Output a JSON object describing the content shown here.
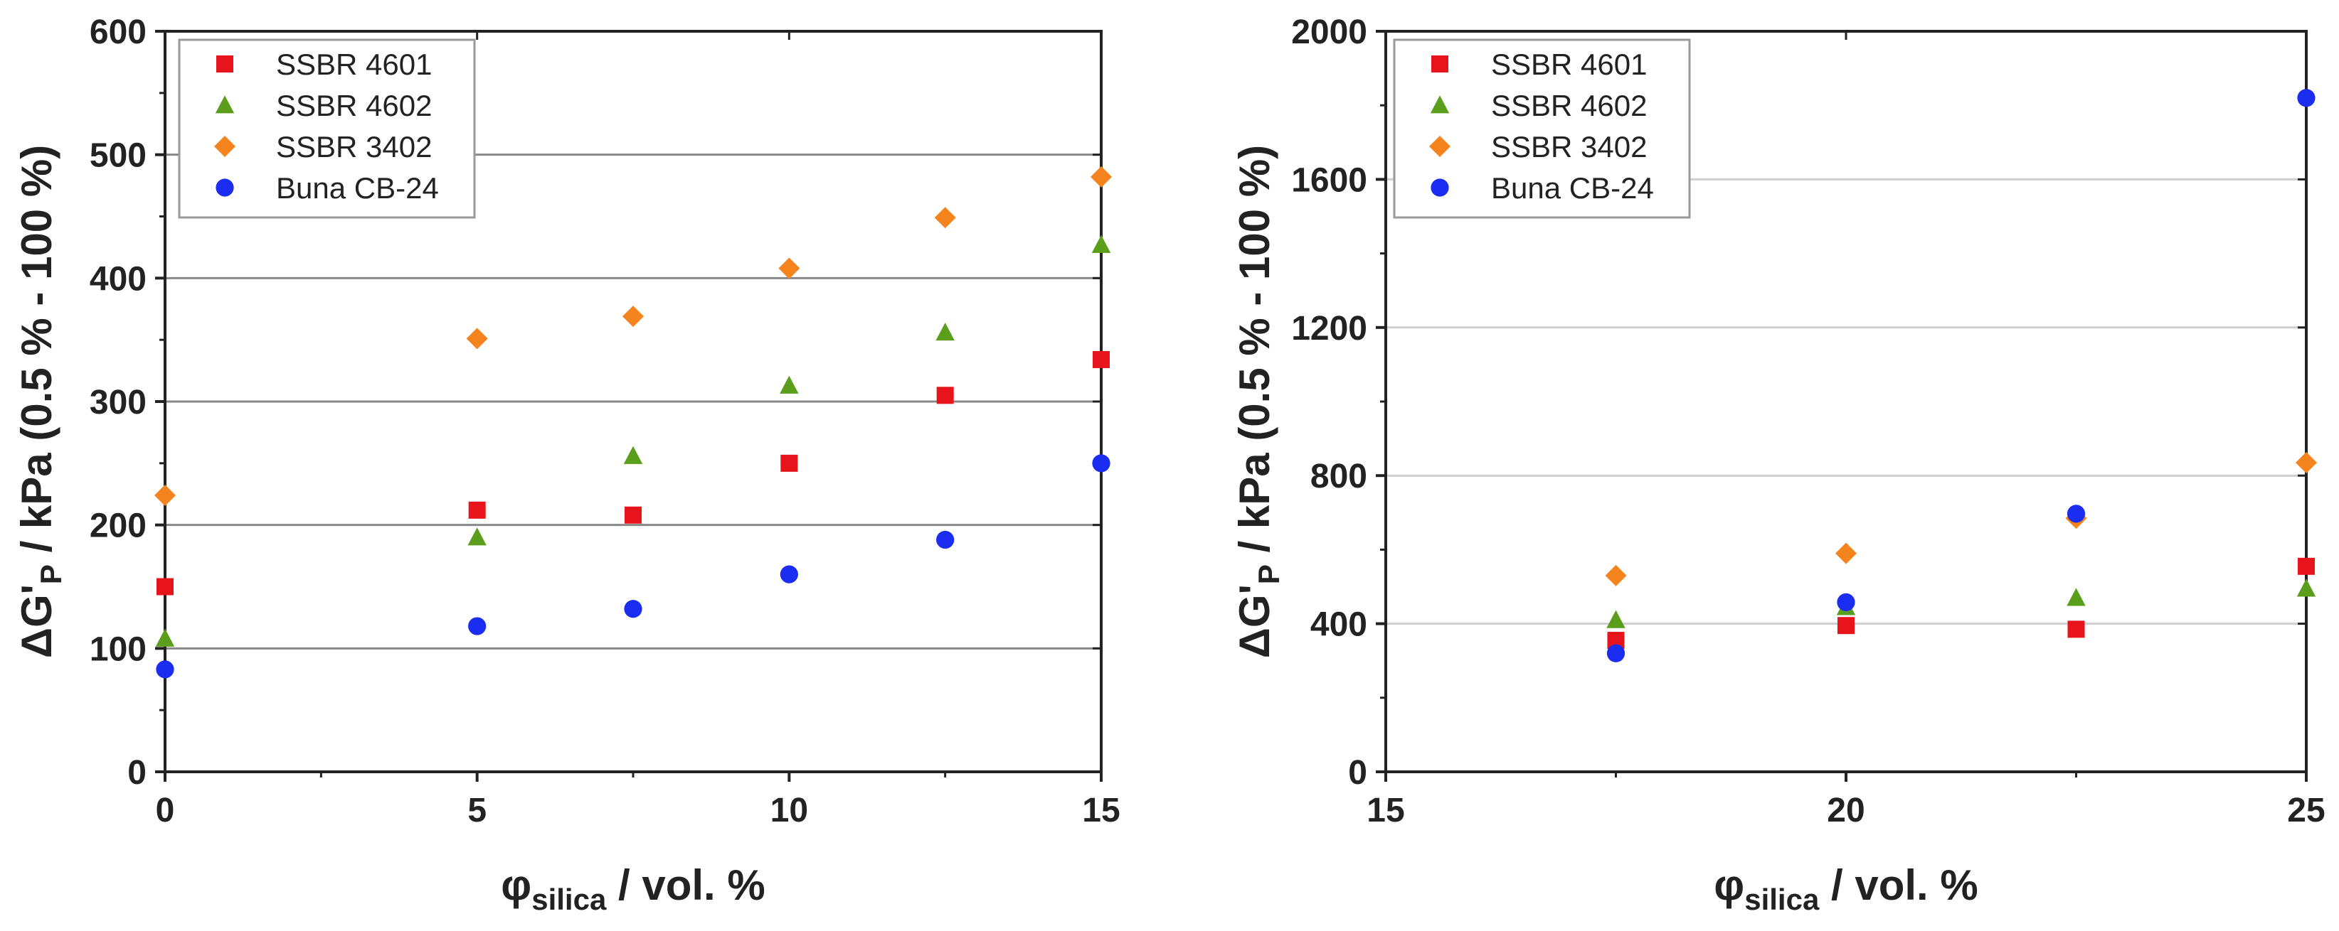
{
  "chart_data": [
    {
      "type": "scatter",
      "title": "",
      "xlabel": {
        "symbol": "φ",
        "subscript": "silica",
        "rest": " / vol. %"
      },
      "ylabel": {
        "prefix": "ΔG'",
        "subscript": "P",
        "rest": " / kPa (0.5 % - 100 %)"
      },
      "xlim": [
        0,
        15
      ],
      "ylim": [
        0,
        600
      ],
      "xticks": [
        0,
        5,
        10,
        15
      ],
      "yticks": [
        0,
        100,
        200,
        300,
        400,
        500,
        600
      ],
      "grid_y": true,
      "legend_position": "top-left",
      "series": [
        {
          "name": "SSBR 4601",
          "marker": "square",
          "color": "#e8141c",
          "x": [
            0,
            5,
            7.5,
            10,
            12.5,
            15
          ],
          "y": [
            150,
            212,
            208,
            250,
            305,
            334
          ]
        },
        {
          "name": "SSBR 4602",
          "marker": "triangle",
          "color": "#5a9e1b",
          "x": [
            0,
            5,
            7.5,
            10,
            12.5,
            15
          ],
          "y": [
            108,
            190,
            256,
            313,
            356,
            427
          ]
        },
        {
          "name": "SSBR 3402",
          "marker": "diamond",
          "color": "#f5841f",
          "x": [
            0,
            5,
            7.5,
            10,
            12.5,
            15
          ],
          "y": [
            224,
            351,
            369,
            408,
            449,
            482
          ]
        },
        {
          "name": "Buna CB-24",
          "marker": "circle",
          "color": "#1a2df0",
          "x": [
            0,
            5,
            7.5,
            10,
            12.5,
            15
          ],
          "y": [
            83,
            118,
            132,
            160,
            188,
            250
          ]
        }
      ]
    },
    {
      "type": "scatter",
      "title": "",
      "xlabel": {
        "symbol": "φ",
        "subscript": "silica",
        "rest": " / vol. %"
      },
      "ylabel": {
        "prefix": "ΔG'",
        "subscript": "P",
        "rest": " / kPa (0.5 % - 100 %)"
      },
      "xlim": [
        15,
        25
      ],
      "ylim": [
        0,
        2000
      ],
      "xticks": [
        15,
        20,
        25
      ],
      "yticks": [
        0,
        400,
        800,
        1200,
        1600,
        2000
      ],
      "grid_y": true,
      "legend_position": "top-left",
      "series": [
        {
          "name": "SSBR 4601",
          "marker": "square",
          "color": "#e8141c",
          "x": [
            17.5,
            20,
            22.5,
            25
          ],
          "y": [
            355,
            395,
            385,
            555
          ]
        },
        {
          "name": "SSBR 4602",
          "marker": "triangle",
          "color": "#5a9e1b",
          "x": [
            17.5,
            20,
            22.5,
            25
          ],
          "y": [
            410,
            445,
            470,
            495
          ]
        },
        {
          "name": "SSBR 3402",
          "marker": "diamond",
          "color": "#f5841f",
          "x": [
            17.5,
            20,
            22.5,
            25
          ],
          "y": [
            530,
            590,
            685,
            835
          ]
        },
        {
          "name": "Buna CB-24",
          "marker": "circle",
          "color": "#1a2df0",
          "x": [
            17.5,
            20,
            22.5,
            25
          ],
          "y": [
            320,
            458,
            697,
            1820
          ]
        }
      ]
    }
  ]
}
